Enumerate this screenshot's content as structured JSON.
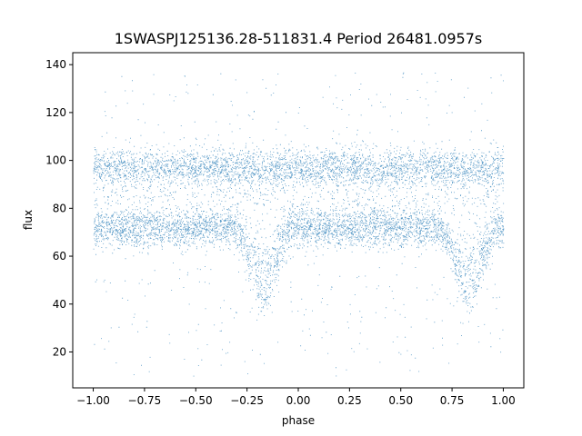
{
  "chart_data": {
    "type": "scatter",
    "title": "1SWASPJ125136.28-511831.4 Period 26481.0957s",
    "xlabel": "phase",
    "ylabel": "flux",
    "xlim": [
      -1.1,
      1.1
    ],
    "ylim": [
      5,
      145
    ],
    "xticks": [
      -1.0,
      -0.75,
      -0.5,
      -0.25,
      0.0,
      0.25,
      0.5,
      0.75,
      1.0
    ],
    "xtick_labels": [
      "−1.00",
      "−0.75",
      "−0.50",
      "−0.25",
      "0.00",
      "0.25",
      "0.50",
      "0.75",
      "1.00"
    ],
    "yticks": [
      20,
      40,
      60,
      80,
      100,
      120,
      140
    ],
    "ytick_labels": [
      "20",
      "40",
      "60",
      "80",
      "100",
      "120",
      "140"
    ],
    "grid": false,
    "point_color": "#1f77b4",
    "data_x_range": [
      -1.0,
      1.0
    ],
    "bands": [
      {
        "center": 97,
        "spread": 4,
        "note": "upper band"
      },
      {
        "center": 72,
        "spread": 4,
        "note": "main band"
      }
    ],
    "eclipses": [
      {
        "phase": -0.17,
        "deep_min_flux": 41,
        "shallow_min_flux": 55
      },
      {
        "phase": 0.83,
        "deep_min_flux": 41,
        "shallow_min_flux": 55
      }
    ],
    "scatter_range": [
      10,
      137
    ]
  }
}
